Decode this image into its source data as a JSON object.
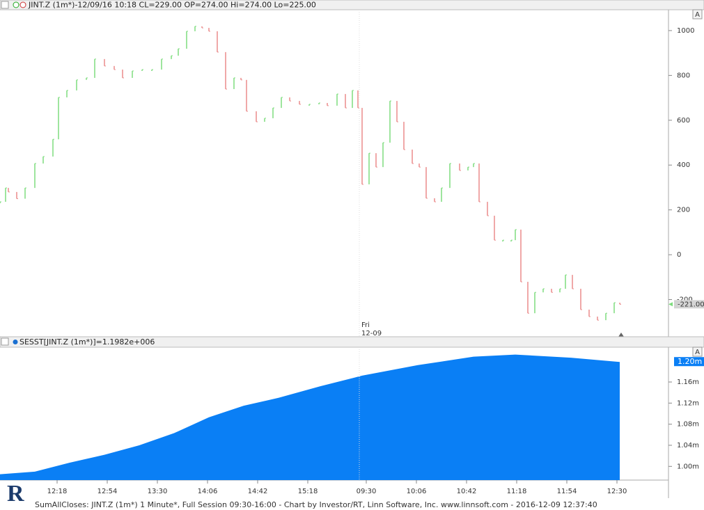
{
  "chart_data": [
    {
      "type": "price-bars",
      "title": "JINT.Z (1m*)-12/09/16 10:18 CL=229.00 OP=274.00 Hi=274.00 Lo=225.00",
      "autoscale_label": "A",
      "annotations": [
        "Fri",
        "12-09"
      ],
      "last_value_label": "-221.00",
      "up_color": "#7ddc7d",
      "down_color": "#ea8a8a",
      "xlim": [
        0,
        480
      ],
      "ylim": [
        -366,
        1093
      ],
      "yticks": [
        -200,
        0,
        200,
        400,
        600,
        800,
        1000
      ],
      "series": [
        {
          "name": "JINT.Z",
          "x": [
            0,
            4,
            6,
            12,
            18,
            25,
            31,
            38,
            42,
            48,
            55,
            62,
            68,
            75,
            82,
            88,
            95,
            102,
            109,
            116,
            123,
            128,
            134,
            140,
            145,
            150,
            156,
            162,
            168,
            173,
            177,
            184,
            190,
            196,
            202,
            208,
            215,
            222,
            229,
            235,
            242,
            248,
            253,
            257,
            260,
            265,
            270,
            275,
            280,
            285,
            290,
            296,
            301,
            306,
            312,
            317,
            323,
            330,
            336,
            340,
            344,
            350,
            355,
            361,
            367,
            370,
            374,
            379,
            384,
            390,
            396,
            402,
            406,
            411,
            417,
            423,
            429,
            435,
            441,
            445
          ],
          "values": [
            236,
            298,
            280,
            250,
            298,
            407,
            438,
            515,
            702,
            733,
            780,
            789,
            873,
            842,
            826,
            789,
            820,
            826,
            826,
            873,
            888,
            919,
            997,
            1019,
            1012,
            997,
            904,
            739,
            789,
            780,
            640,
            593,
            609,
            655,
            702,
            686,
            671,
            671,
            677,
            665,
            717,
            655,
            733,
            655,
            314,
            453,
            391,
            500,
            686,
            593,
            469,
            407,
            391,
            252,
            236,
            298,
            407,
            376,
            391,
            407,
            236,
            174,
            65,
            65,
            65,
            112,
            -121,
            -261,
            -168,
            -152,
            -168,
            -152,
            -90,
            -152,
            -245,
            -276,
            -292,
            -261,
            -214,
            -221
          ]
        }
      ]
    },
    {
      "type": "area",
      "title": "SESST[JINT.Z (1m*)]=1.1982e+006",
      "autoscale_label": "A",
      "last_value_label": "1.20m",
      "color": "#0a7ff5",
      "xlim": [
        0,
        480
      ],
      "ylim": [
        0.974,
        1.226
      ],
      "yticks": [
        {
          "value": 1.0,
          "label": "1.00m"
        },
        {
          "value": 1.04,
          "label": "1.04m"
        },
        {
          "value": 1.08,
          "label": "1.08m"
        },
        {
          "value": 1.12,
          "label": "1.12m"
        },
        {
          "value": 1.16,
          "label": "1.16m"
        }
      ],
      "xticks": [
        {
          "value": 41,
          "label": "12:18"
        },
        {
          "value": 77,
          "label": "12:54"
        },
        {
          "value": 113,
          "label": "13:30"
        },
        {
          "value": 149,
          "label": "14:06"
        },
        {
          "value": 185,
          "label": "14:42"
        },
        {
          "value": 221,
          "label": "15:18"
        },
        {
          "value": 263,
          "label": "09:30"
        },
        {
          "value": 299,
          "label": "10:06"
        },
        {
          "value": 335,
          "label": "10:42"
        },
        {
          "value": 371,
          "label": "11:18"
        },
        {
          "value": 407,
          "label": "11:54"
        },
        {
          "value": 443,
          "label": "12:30"
        }
      ],
      "series": [
        {
          "name": "SESST",
          "x": [
            0,
            25,
            50,
            75,
            100,
            125,
            150,
            175,
            200,
            230,
            260,
            300,
            340,
            370,
            410,
            445
          ],
          "values": [
            0.985,
            0.99,
            1.007,
            1.022,
            1.04,
            1.063,
            1.093,
            1.115,
            1.13,
            1.152,
            1.172,
            1.192,
            1.208,
            1.212,
            1.206,
            1.198
          ]
        }
      ]
    }
  ],
  "footer": "SumAllCloses: JINT.Z (1m*) 1 Minute*, Full Session 09:30-16:00 - Chart by Investor/RT, Linn Software, Inc. www.linnsoft.com - 2016-12-09 12:37:40",
  "logo": "R"
}
